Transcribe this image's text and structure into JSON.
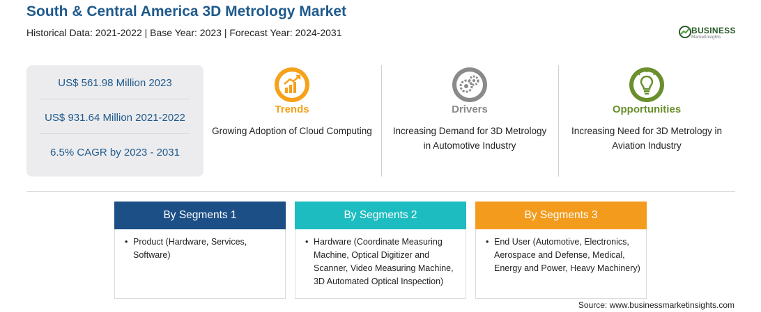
{
  "header": {
    "title": "South & Central America 3D Metrology Market",
    "subtitle": "Historical Data: 2021-2022 | Base Year: 2023 | Forecast Year: 2024-2031"
  },
  "logo": {
    "word": "BUSINESS",
    "sub": "MarketInsights",
    "icon": "globe-logo-icon"
  },
  "stats": [
    "US$ 561.98 Million 2023",
    "US$ 931.64 Million 2021-2022",
    "6.5% CAGR by 2023 - 2031"
  ],
  "columns": [
    {
      "label": "Trends",
      "text": "Growing Adoption of Cloud Computing",
      "icon": "trend-chart-icon",
      "color": "#f5a11a"
    },
    {
      "label": "Drivers",
      "text": "Increasing Demand for 3D Metrology in Automotive Industry",
      "icon": "gears-icon",
      "color": "#8a8a8a"
    },
    {
      "label": "Opportunities",
      "text": "Increasing Need for 3D Metrology in Aviation Industry",
      "icon": "lightbulb-icon",
      "color": "#6a8f2c"
    }
  ],
  "segments": [
    {
      "title": "By Segments 1",
      "item": "Product (Hardware, Services, Software)",
      "color": "#1b4f86"
    },
    {
      "title": "By Segments 2",
      "item": "Hardware (Coordinate Measuring Machine, Optical Digitizer and Scanner, Video Measuring Machine, 3D Automated Optical Inspection)",
      "color": "#1dbcc0"
    },
    {
      "title": "By Segments 3",
      "item": "End User (Automotive, Electronics, Aerospace and Defense, Medical, Energy and Power, Heavy Machinery)",
      "color": "#f39b1d"
    }
  ],
  "bullet": "•",
  "source": "Source: www.businessmarketinsights.com"
}
